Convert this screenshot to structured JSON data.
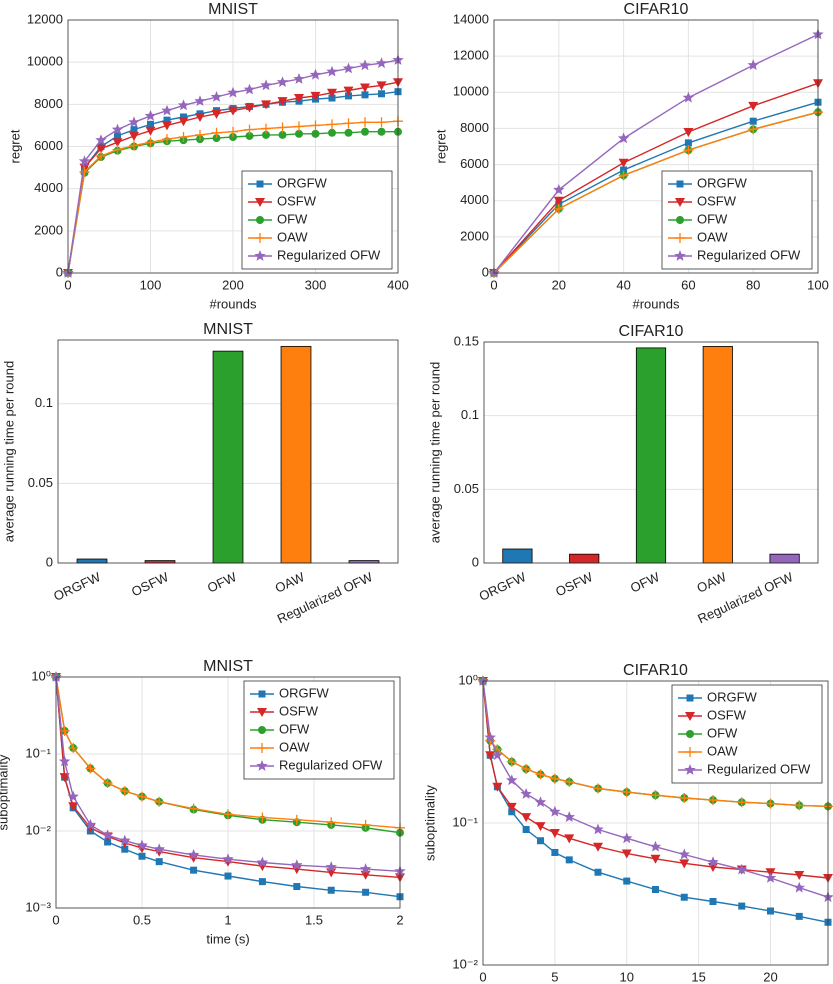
{
  "chart_data": [
    {
      "type": "line",
      "title": "MNIST",
      "xlabel": "#rounds",
      "ylabel": "regret",
      "x": [
        0,
        20,
        40,
        60,
        80,
        100,
        120,
        140,
        160,
        180,
        200,
        220,
        240,
        260,
        280,
        300,
        320,
        340,
        360,
        380,
        400
      ],
      "series": [
        {
          "name": "ORGFW",
          "color": "#1f77b4",
          "marker": "square",
          "values": [
            0,
            5000,
            6000,
            6500,
            6800,
            7050,
            7250,
            7400,
            7550,
            7700,
            7800,
            7900,
            8000,
            8100,
            8150,
            8250,
            8300,
            8400,
            8450,
            8500,
            8600
          ]
        },
        {
          "name": "OSFW",
          "color": "#d62728",
          "marker": "triangle-down",
          "values": [
            0,
            5000,
            5900,
            6200,
            6500,
            6750,
            7000,
            7200,
            7400,
            7550,
            7700,
            7850,
            8000,
            8150,
            8300,
            8400,
            8550,
            8650,
            8800,
            8900,
            9050
          ]
        },
        {
          "name": "OFW",
          "color": "#2ca02c",
          "marker": "circle",
          "values": [
            0,
            4750,
            5500,
            5800,
            6000,
            6150,
            6250,
            6300,
            6350,
            6400,
            6450,
            6500,
            6550,
            6550,
            6600,
            6600,
            6650,
            6650,
            6700,
            6700,
            6700
          ]
        },
        {
          "name": "OAW",
          "color": "#ff7f0e",
          "marker": "plus",
          "values": [
            0,
            4800,
            5550,
            5850,
            6050,
            6200,
            6350,
            6450,
            6550,
            6650,
            6700,
            6800,
            6850,
            6900,
            6950,
            7000,
            7050,
            7100,
            7150,
            7150,
            7200
          ]
        },
        {
          "name": "Regularized OFW",
          "color": "#9467bd",
          "marker": "star",
          "values": [
            0,
            5300,
            6300,
            6800,
            7150,
            7450,
            7700,
            7950,
            8150,
            8350,
            8550,
            8700,
            8900,
            9050,
            9200,
            9400,
            9550,
            9700,
            9850,
            9950,
            10100
          ]
        }
      ],
      "xlim": [
        0,
        400
      ],
      "xticks": [
        0,
        100,
        200,
        300,
        400
      ],
      "ylim": [
        0,
        12000
      ],
      "yticks": [
        0,
        2000,
        4000,
        6000,
        8000,
        10000,
        12000
      ],
      "grid": true,
      "legend": "lower right"
    },
    {
      "type": "line",
      "title": "CIFAR10",
      "xlabel": "#rounds",
      "ylabel": "regret",
      "x": [
        0,
        20,
        40,
        60,
        80,
        100
      ],
      "series": [
        {
          "name": "ORGFW",
          "color": "#1f77b4",
          "marker": "square",
          "values": [
            0,
            3800,
            5700,
            7200,
            8400,
            9450
          ]
        },
        {
          "name": "OSFW",
          "color": "#d62728",
          "marker": "triangle-down",
          "values": [
            0,
            4000,
            6100,
            7800,
            9250,
            10500
          ]
        },
        {
          "name": "OFW",
          "color": "#2ca02c",
          "marker": "circle",
          "values": [
            0,
            3550,
            5400,
            6800,
            7950,
            8900
          ]
        },
        {
          "name": "OAW",
          "color": "#ff7f0e",
          "marker": "plus",
          "values": [
            0,
            3550,
            5400,
            6800,
            7950,
            8900
          ]
        },
        {
          "name": "Regularized OFW",
          "color": "#9467bd",
          "marker": "star",
          "values": [
            0,
            4600,
            7450,
            9700,
            11500,
            13200
          ]
        }
      ],
      "xlim": [
        0,
        100
      ],
      "xticks": [
        0,
        20,
        40,
        60,
        80,
        100
      ],
      "ylim": [
        0,
        14000
      ],
      "yticks": [
        0,
        2000,
        4000,
        6000,
        8000,
        10000,
        12000,
        14000
      ],
      "grid": true,
      "legend": "lower right"
    },
    {
      "type": "bar",
      "title": "MNIST",
      "ylabel": "average running time per round",
      "categories": [
        "ORGFW",
        "OSFW",
        "OFW",
        "OAW",
        "Regularized OFW"
      ],
      "values": [
        0.0025,
        0.0015,
        0.133,
        0.136,
        0.0015
      ],
      "colors": [
        "#1f77b4",
        "#d62728",
        "#2ca02c",
        "#ff7f0e",
        "#9467bd"
      ],
      "ylim": [
        0,
        0.14
      ],
      "yticks": [
        0,
        0.05,
        0.1
      ],
      "grid": true
    },
    {
      "type": "bar",
      "title": "CIFAR10",
      "ylabel": "average running time per round",
      "categories": [
        "ORGFW",
        "OSFW",
        "OFW",
        "OAW",
        "Regularized OFW"
      ],
      "values": [
        0.0095,
        0.006,
        0.146,
        0.147,
        0.006
      ],
      "colors": [
        "#1f77b4",
        "#d62728",
        "#2ca02c",
        "#ff7f0e",
        "#9467bd"
      ],
      "ylim": [
        0,
        0.15
      ],
      "yticks": [
        0,
        0.05,
        0.1,
        0.15
      ],
      "grid": true
    },
    {
      "type": "line",
      "title": "MNIST",
      "xlabel": "time (s)",
      "ylabel": "suboptimality",
      "ylog": true,
      "x": [
        0,
        0.05,
        0.1,
        0.2,
        0.3,
        0.4,
        0.5,
        0.6,
        0.8,
        1.0,
        1.2,
        1.4,
        1.6,
        1.8,
        2.0
      ],
      "series": [
        {
          "name": "ORGFW",
          "color": "#1f77b4",
          "marker": "square",
          "values": [
            1,
            0.05,
            0.02,
            0.01,
            0.0072,
            0.0058,
            0.0047,
            0.004,
            0.0031,
            0.0026,
            0.0022,
            0.0019,
            0.0017,
            0.0016,
            0.0014
          ]
        },
        {
          "name": "OSFW",
          "color": "#d62728",
          "marker": "triangle-down",
          "values": [
            1,
            0.05,
            0.021,
            0.011,
            0.0085,
            0.007,
            0.006,
            0.0054,
            0.0045,
            0.004,
            0.0035,
            0.0032,
            0.0029,
            0.0027,
            0.0025
          ]
        },
        {
          "name": "OFW",
          "color": "#2ca02c",
          "marker": "circle",
          "values": [
            1,
            0.2,
            0.12,
            0.065,
            0.042,
            0.033,
            0.028,
            0.024,
            0.019,
            0.016,
            0.014,
            0.013,
            0.012,
            0.011,
            0.0095
          ]
        },
        {
          "name": "OAW",
          "color": "#ff7f0e",
          "marker": "plus",
          "values": [
            1,
            0.2,
            0.12,
            0.065,
            0.042,
            0.033,
            0.028,
            0.024,
            0.0195,
            0.0165,
            0.015,
            0.014,
            0.013,
            0.012,
            0.011
          ]
        },
        {
          "name": "Regularized OFW",
          "color": "#9467bd",
          "marker": "star",
          "values": [
            1,
            0.08,
            0.028,
            0.012,
            0.0088,
            0.0075,
            0.0065,
            0.0058,
            0.0049,
            0.0043,
            0.0039,
            0.0036,
            0.0034,
            0.0032,
            0.003
          ]
        }
      ],
      "xlim": [
        0,
        2
      ],
      "xticks": [
        0,
        0.5,
        1,
        1.5,
        2
      ],
      "ylim": [
        0.001,
        1
      ],
      "yticks": [
        {
          "value": 0.001,
          "label": "10⁻³"
        },
        {
          "value": 0.01,
          "label": "10⁻²"
        },
        {
          "value": 0.1,
          "label": "10⁻¹"
        },
        {
          "value": 1,
          "label": "10⁰"
        }
      ],
      "grid": true,
      "legend": "upper right"
    },
    {
      "type": "line",
      "title": "CIFAR10",
      "xlabel": "time (s)",
      "ylabel": "suboptimality",
      "ylog": true,
      "x": [
        0,
        0.5,
        1,
        2,
        3,
        4,
        5,
        6,
        8,
        10,
        12,
        14,
        16,
        18,
        20,
        22,
        24
      ],
      "series": [
        {
          "name": "ORGFW",
          "color": "#1f77b4",
          "marker": "square",
          "values": [
            1,
            0.3,
            0.18,
            0.12,
            0.09,
            0.075,
            0.062,
            0.055,
            0.045,
            0.039,
            0.034,
            0.03,
            0.028,
            0.026,
            0.024,
            0.022,
            0.02
          ]
        },
        {
          "name": "OSFW",
          "color": "#d62728",
          "marker": "triangle-down",
          "values": [
            1,
            0.3,
            0.18,
            0.13,
            0.11,
            0.095,
            0.085,
            0.078,
            0.068,
            0.061,
            0.056,
            0.052,
            0.049,
            0.047,
            0.045,
            0.043,
            0.041
          ]
        },
        {
          "name": "OFW",
          "color": "#2ca02c",
          "marker": "circle",
          "values": [
            1,
            0.38,
            0.33,
            0.27,
            0.24,
            0.22,
            0.205,
            0.195,
            0.175,
            0.165,
            0.157,
            0.15,
            0.145,
            0.14,
            0.137,
            0.133,
            0.131
          ]
        },
        {
          "name": "OAW",
          "color": "#ff7f0e",
          "marker": "plus",
          "values": [
            1,
            0.38,
            0.33,
            0.27,
            0.24,
            0.22,
            0.205,
            0.195,
            0.175,
            0.165,
            0.157,
            0.15,
            0.145,
            0.14,
            0.137,
            0.133,
            0.131
          ]
        },
        {
          "name": "Regularized OFW",
          "color": "#9467bd",
          "marker": "star",
          "values": [
            1,
            0.4,
            0.3,
            0.2,
            0.16,
            0.14,
            0.12,
            0.11,
            0.09,
            0.078,
            0.068,
            0.06,
            0.053,
            0.047,
            0.041,
            0.035,
            0.03
          ]
        }
      ],
      "xlim": [
        0,
        24
      ],
      "xticks": [
        0,
        5,
        10,
        15,
        20
      ],
      "ylim": [
        0.01,
        1
      ],
      "yticks": [
        {
          "value": 0.01,
          "label": "10⁻²"
        },
        {
          "value": 0.1,
          "label": "10⁻¹"
        },
        {
          "value": 1,
          "label": "10⁰"
        }
      ],
      "grid": true,
      "legend": "upper right"
    }
  ]
}
